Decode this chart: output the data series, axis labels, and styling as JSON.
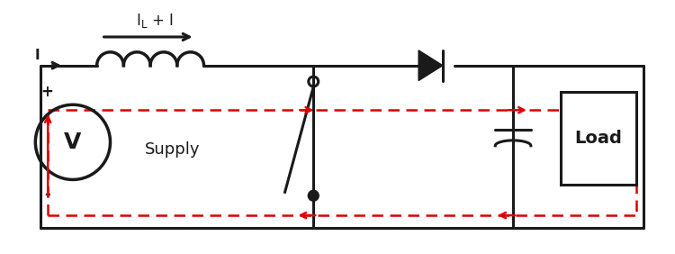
{
  "bg_color": "#ffffff",
  "line_color": "#1a1a1a",
  "red_color": "#e00000",
  "lw": 2.2,
  "rlw": 1.8,
  "fig_width": 7.5,
  "fig_height": 2.82,
  "supply_label": "Supply",
  "load_label": "Load",
  "volt_label": "V",
  "plus_label": "+",
  "minus_label": "-",
  "I_label": "I",
  "IL_label": "I$_L$ + I"
}
